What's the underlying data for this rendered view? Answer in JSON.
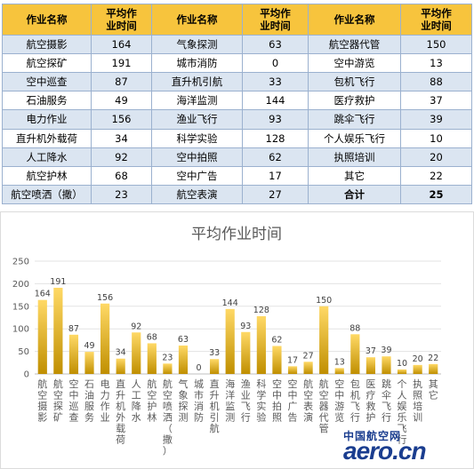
{
  "table": {
    "headers": [
      "作业名称",
      "平均作业时间",
      "作业名称",
      "平均作业时间",
      "作业名称",
      "平均作业时间"
    ],
    "rows": [
      [
        "航空摄影",
        "164",
        "气象探测",
        "63",
        "航空器代管",
        "150"
      ],
      [
        "航空探矿",
        "191",
        "城市消防",
        "0",
        "空中游览",
        "13"
      ],
      [
        "空中巡查",
        "87",
        "直升机引航",
        "33",
        "包机飞行",
        "88"
      ],
      [
        "石油服务",
        "49",
        "海洋监测",
        "144",
        "医疗救护",
        "37"
      ],
      [
        "电力作业",
        "156",
        "渔业飞行",
        "93",
        "跳伞飞行",
        "39"
      ],
      [
        "直升机外载荷",
        "34",
        "科学实验",
        "128",
        "个人娱乐飞行",
        "10"
      ],
      [
        "人工降水",
        "92",
        "空中拍照",
        "62",
        "执照培训",
        "20"
      ],
      [
        "航空护林",
        "68",
        "空中广告",
        "17",
        "其它",
        "22"
      ],
      [
        "航空喷洒（撒）",
        "23",
        "航空表演",
        "27",
        "合计",
        "25"
      ]
    ]
  },
  "chart_data": {
    "type": "bar",
    "title": "平均作业时间",
    "categories": [
      "航空摄影",
      "航空探矿",
      "空中巡查",
      "石油服务",
      "电力作业",
      "直升机外载荷",
      "人工降水",
      "航空护林",
      "航空喷洒（撒）",
      "气象探测",
      "城市消防",
      "直升机引航",
      "海洋监测",
      "渔业飞行",
      "科学实验",
      "空中拍照",
      "空中广告",
      "航空表演",
      "航空器代管",
      "空中游览",
      "包机飞行",
      "医疗救护",
      "跳伞飞行",
      "个人娱乐飞行",
      "执照培训",
      "其它"
    ],
    "values": [
      164,
      191,
      87,
      49,
      156,
      34,
      92,
      68,
      23,
      63,
      0,
      33,
      144,
      93,
      128,
      62,
      17,
      27,
      150,
      13,
      88,
      37,
      39,
      10,
      20,
      22
    ],
    "ylim": [
      0,
      250
    ],
    "yticks": [
      0,
      50,
      100,
      150,
      200,
      250
    ],
    "grid": true,
    "bar_color": "#ffc000"
  },
  "colors": {
    "header": "#f7c43d",
    "band": "#dbe5f1",
    "bar_gradient_top": "#ffd966",
    "bar_gradient_bottom": "#c08f00"
  },
  "watermark": {
    "cn": "中国航空网",
    "en": "aero.cn"
  }
}
